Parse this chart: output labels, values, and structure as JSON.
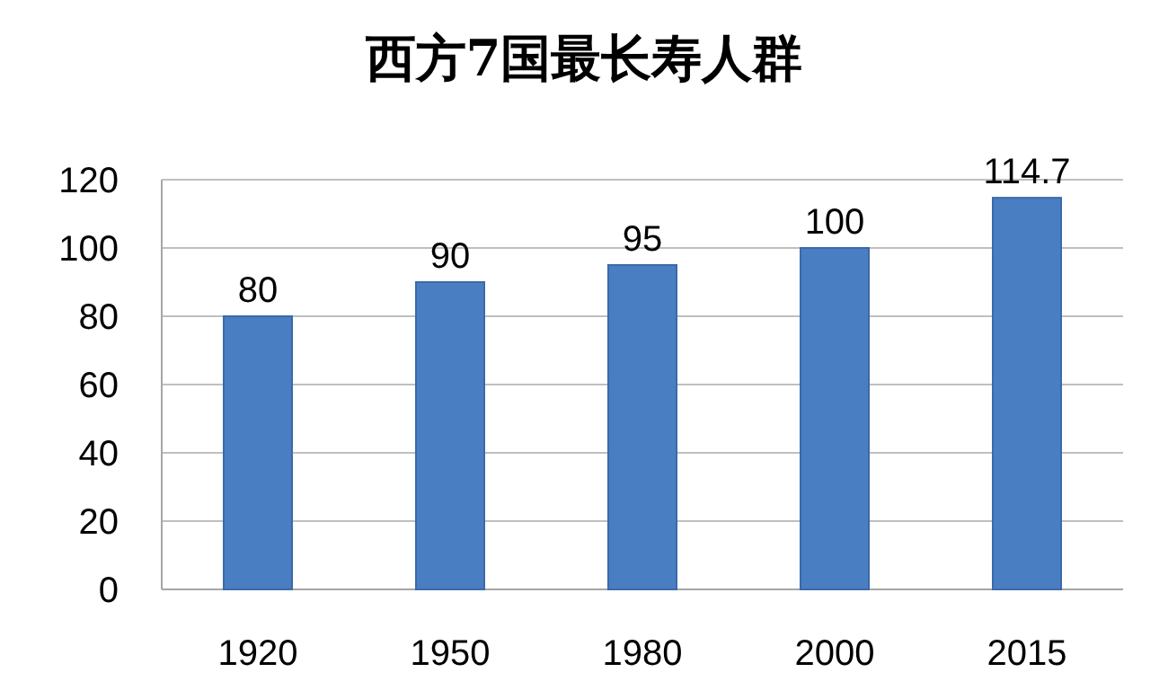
{
  "chart_data": {
    "type": "bar",
    "title": "西方7国最长寿人群",
    "categories": [
      "1920",
      "1950",
      "1980",
      "2000",
      "2015"
    ],
    "values": [
      80,
      90,
      95,
      100,
      114.7
    ],
    "color": "#4a7ec2",
    "ylim": [
      0,
      120
    ],
    "yticks": [
      0,
      20,
      40,
      60,
      80,
      100,
      120
    ],
    "grid": true,
    "data_labels": true
  }
}
